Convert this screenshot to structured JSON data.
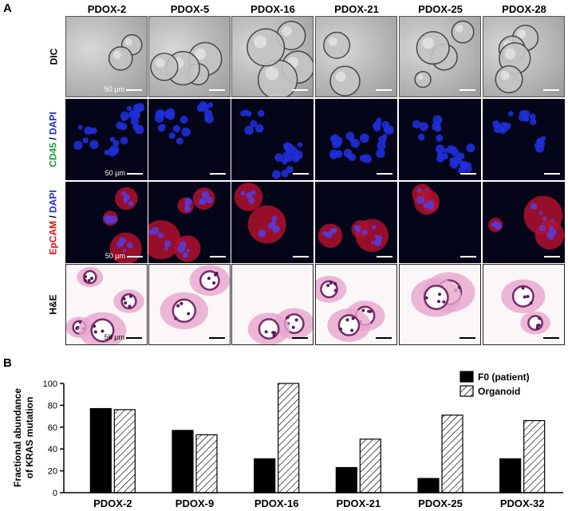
{
  "panel_a": {
    "label": "A",
    "columns": [
      "PDOX-2",
      "PDOX-5",
      "PDOX-16",
      "PDOX-21",
      "PDOX-25",
      "PDOX-28"
    ],
    "rows": [
      {
        "name": "DIC",
        "parts": [
          {
            "text": "DIC",
            "color": "#000000"
          }
        ],
        "style": "dic"
      },
      {
        "name": "CD45-DAPI",
        "parts": [
          {
            "text": "CD45",
            "color": "#1a9a3a"
          },
          {
            "text": " / ",
            "color": "#000000"
          },
          {
            "text": "DAPI",
            "color": "#1a2fcc"
          }
        ],
        "style": "cd45"
      },
      {
        "name": "EpCAM-DAPI",
        "parts": [
          {
            "text": "EpCAM",
            "color": "#e01515"
          },
          {
            "text": " / ",
            "color": "#000000"
          },
          {
            "text": "DAPI",
            "color": "#1a2fcc"
          }
        ],
        "style": "epcam"
      },
      {
        "name": "HE",
        "parts": [
          {
            "text": "H&E",
            "color": "#000000"
          }
        ],
        "style": "he"
      }
    ],
    "scale_bar_label": "50 µm"
  },
  "panel_b": {
    "label": "B"
  },
  "chart_data": {
    "type": "bar",
    "title": "",
    "xlabel": "",
    "ylabel": "Fractional abundance of KRAS mutation",
    "ylabel_lines": [
      "Fractional abundance",
      "of KRAS mutation"
    ],
    "categories": [
      "PDOX-2",
      "PDOX-9",
      "PDOX-16",
      "PDOX-21",
      "PDOX-25",
      "PDOX-32"
    ],
    "series": [
      {
        "name": "F0 (patient)",
        "values": [
          77,
          57,
          31,
          23,
          13,
          31
        ],
        "fill": "#000000"
      },
      {
        "name": "Organoid",
        "values": [
          76,
          53,
          100,
          49,
          71,
          66
        ],
        "fill": "hatched"
      }
    ],
    "ylim": [
      0,
      100
    ],
    "yticks": [
      0,
      20,
      40,
      60,
      80,
      100
    ],
    "grid": false,
    "legend_position": "top-right"
  }
}
